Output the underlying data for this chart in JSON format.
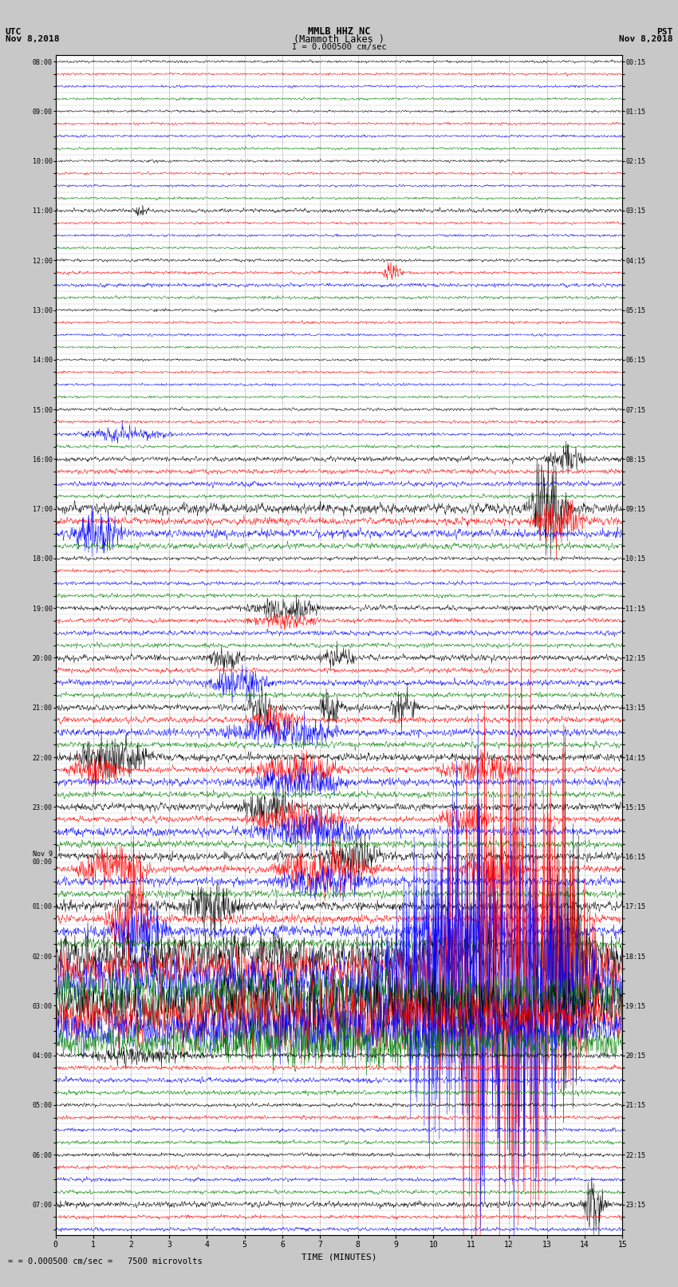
{
  "title_line1": "MMLB HHZ NC",
  "title_line2": "(Mammoth Lakes )",
  "scale_label": "I = 0.000500 cm/sec",
  "left_label_line1": "UTC",
  "left_label_line2": "Nov 8,2018",
  "right_label_line1": "PST",
  "right_label_line2": "Nov 8,2018",
  "bottom_label": "TIME (MINUTES)",
  "footer_label": "= 0.000500 cm/sec =   7500 microvolts",
  "xlabel_ticks": [
    0,
    1,
    2,
    3,
    4,
    5,
    6,
    7,
    8,
    9,
    10,
    11,
    12,
    13,
    14,
    15
  ],
  "utc_times": [
    "08:00",
    "",
    "",
    "",
    "09:00",
    "",
    "",
    "",
    "10:00",
    "",
    "",
    "",
    "11:00",
    "",
    "",
    "",
    "12:00",
    "",
    "",
    "",
    "13:00",
    "",
    "",
    "",
    "14:00",
    "",
    "",
    "",
    "15:00",
    "",
    "",
    "",
    "16:00",
    "",
    "",
    "",
    "17:00",
    "",
    "",
    "",
    "18:00",
    "",
    "",
    "",
    "19:00",
    "",
    "",
    "",
    "20:00",
    "",
    "",
    "",
    "21:00",
    "",
    "",
    "",
    "22:00",
    "",
    "",
    "",
    "23:00",
    "",
    "",
    "",
    "Nov 9\n00:00",
    "",
    "",
    "",
    "01:00",
    "",
    "",
    "",
    "02:00",
    "",
    "",
    "",
    "03:00",
    "",
    "",
    "",
    "04:00",
    "",
    "",
    "",
    "05:00",
    "",
    "",
    "",
    "06:00",
    "",
    "",
    "",
    "07:00",
    "",
    ""
  ],
  "pst_times": [
    "00:15",
    "",
    "",
    "",
    "01:15",
    "",
    "",
    "",
    "02:15",
    "",
    "",
    "",
    "03:15",
    "",
    "",
    "",
    "04:15",
    "",
    "",
    "",
    "05:15",
    "",
    "",
    "",
    "06:15",
    "",
    "",
    "",
    "07:15",
    "",
    "",
    "",
    "08:15",
    "",
    "",
    "",
    "09:15",
    "",
    "",
    "",
    "10:15",
    "",
    "",
    "",
    "11:15",
    "",
    "",
    "",
    "12:15",
    "",
    "",
    "",
    "13:15",
    "",
    "",
    "",
    "14:15",
    "",
    "",
    "",
    "15:15",
    "",
    "",
    "",
    "16:15",
    "",
    "",
    "",
    "17:15",
    "",
    "",
    "",
    "18:15",
    "",
    "",
    "",
    "19:15",
    "",
    "",
    "",
    "20:15",
    "",
    "",
    "",
    "21:15",
    "",
    "",
    "",
    "22:15",
    "",
    "",
    "",
    "23:15",
    "",
    ""
  ],
  "n_rows": 95,
  "n_points": 1500,
  "colors_cycle": [
    "black",
    "red",
    "blue",
    "green"
  ],
  "bg_color": "#c8c8c8",
  "plot_bg": "#ffffff",
  "line_width": 0.35,
  "noise_base": 0.06,
  "figsize": [
    8.5,
    16.13
  ],
  "dpi": 100,
  "grid_color": "#aaaaaa",
  "grid_lw": 0.5,
  "vertical_lines_x": [
    0,
    1,
    2,
    3,
    4,
    5,
    6,
    7,
    8,
    9,
    10,
    11,
    12,
    13,
    14,
    15
  ],
  "amp_multipliers": {
    "0": 1.0,
    "1": 1.0,
    "2": 1.0,
    "3": 1.0,
    "4": 1.0,
    "5": 1.0,
    "6": 1.0,
    "7": 1.0,
    "8": 1.0,
    "9": 1.0,
    "10": 1.0,
    "11": 1.0,
    "12": 1.5,
    "13": 1.0,
    "14": 1.0,
    "15": 1.0,
    "16": 1.2,
    "17": 1.2,
    "18": 1.5,
    "19": 1.2,
    "20": 1.0,
    "21": 1.0,
    "22": 1.0,
    "23": 1.0,
    "24": 1.0,
    "25": 1.0,
    "26": 1.0,
    "27": 1.0,
    "28": 1.2,
    "29": 1.2,
    "30": 1.2,
    "31": 1.2,
    "32": 2.0,
    "33": 1.8,
    "34": 2.0,
    "35": 1.5,
    "36": 4.0,
    "37": 3.0,
    "38": 3.5,
    "39": 2.5,
    "40": 1.5,
    "41": 1.5,
    "42": 1.5,
    "43": 1.5,
    "44": 2.0,
    "45": 1.8,
    "46": 2.0,
    "47": 1.8,
    "48": 2.5,
    "49": 2.0,
    "50": 2.5,
    "51": 2.0,
    "52": 2.5,
    "53": 2.5,
    "54": 3.0,
    "55": 2.5,
    "56": 3.0,
    "57": 2.5,
    "58": 3.0,
    "59": 2.5,
    "60": 3.0,
    "61": 2.5,
    "62": 3.5,
    "63": 3.0,
    "64": 3.5,
    "65": 3.0,
    "66": 3.5,
    "67": 3.0,
    "68": 4.0,
    "69": 3.5,
    "70": 5.0,
    "71": 4.0,
    "72": 18.0,
    "73": 15.0,
    "74": 20.0,
    "75": 18.0,
    "76": 22.0,
    "77": 20.0,
    "78": 15.0,
    "79": 12.0,
    "80": 2.0,
    "81": 1.8,
    "82": 2.0,
    "83": 1.8,
    "84": 1.5,
    "85": 1.5,
    "86": 1.5,
    "87": 1.5,
    "88": 1.5,
    "89": 1.5,
    "90": 1.5,
    "91": 1.5,
    "92": 2.5,
    "93": 1.5,
    "94": 1.5
  }
}
